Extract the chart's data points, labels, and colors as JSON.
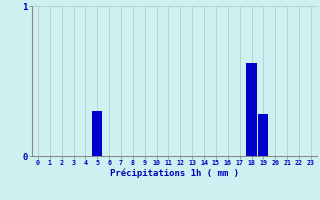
{
  "title": "",
  "xlabel": "Précipitations 1h ( mm )",
  "ylabel": "",
  "hours": [
    0,
    1,
    2,
    3,
    4,
    5,
    6,
    7,
    8,
    9,
    10,
    11,
    12,
    13,
    14,
    15,
    16,
    17,
    18,
    19,
    20,
    21,
    22,
    23
  ],
  "values": [
    0,
    0,
    0,
    0,
    0,
    0.3,
    0,
    0,
    0,
    0,
    0,
    0,
    0,
    0,
    0,
    0,
    0,
    0,
    0.62,
    0.28,
    0,
    0,
    0,
    0
  ],
  "bar_color": "#0000cc",
  "background_color": "#cff0f0",
  "grid_color": "#aacece",
  "axis_color": "#888888",
  "text_color": "#0000bb",
  "ylim": [
    0,
    1.0
  ],
  "yticks": [
    0,
    1
  ],
  "figsize": [
    3.2,
    2.0
  ],
  "dpi": 100
}
